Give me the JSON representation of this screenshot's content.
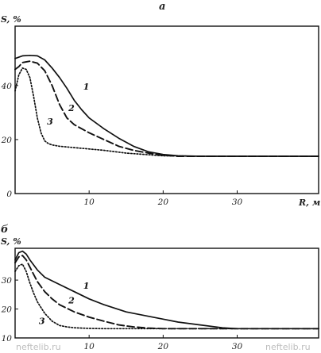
{
  "watermark": "neftelib.ru",
  "chart_data": [
    {
      "type": "line",
      "panel": "a",
      "ylabel": "S, %",
      "xlabel": "R, м",
      "xlim": [
        0,
        41
      ],
      "ylim": [
        0,
        62
      ],
      "xticks": [
        "10",
        "20",
        "30"
      ],
      "yticks": [
        {
          "v": 0,
          "label": "0"
        },
        {
          "v": 20,
          "label": "20"
        },
        {
          "v": 40,
          "label": "40"
        }
      ],
      "grid": false,
      "series": [
        {
          "name": "1",
          "style": "solid",
          "x": [
            0,
            0.5,
            1,
            2,
            3,
            4,
            5,
            6,
            7,
            8,
            9,
            10,
            12,
            14,
            16,
            18,
            20,
            22,
            25,
            30,
            35,
            41
          ],
          "y": [
            50,
            50.5,
            51,
            51.2,
            51,
            49.5,
            46.5,
            43,
            39,
            34.5,
            31,
            28,
            24,
            20.5,
            17.5,
            15.5,
            14.5,
            14,
            13.8,
            13.8,
            13.8,
            13.8
          ],
          "label_at": [
            9.2,
            38.5
          ]
        },
        {
          "name": "2",
          "style": "dashed",
          "x": [
            0,
            0.5,
            1,
            2,
            3,
            4,
            5,
            6,
            7,
            8,
            10,
            12,
            14,
            16,
            18,
            20,
            22,
            25,
            30,
            35,
            41
          ],
          "y": [
            46,
            47,
            48.5,
            49,
            48.3,
            45.5,
            40,
            33,
            28,
            25.5,
            22.5,
            20,
            17.5,
            16,
            15,
            14.2,
            13.8,
            13.8,
            13.8,
            13.8,
            13.8
          ],
          "label_at": [
            7.2,
            30.5
          ]
        },
        {
          "name": "3",
          "style": "dotted",
          "x": [
            0,
            0.5,
            1,
            1.5,
            2,
            2.5,
            3,
            3.5,
            4,
            4.5,
            5,
            6,
            8,
            10,
            12,
            15,
            20,
            25,
            30,
            35,
            41
          ],
          "y": [
            38,
            44,
            46.5,
            46,
            43,
            36,
            28,
            22.5,
            19.5,
            18.5,
            18,
            17.5,
            17,
            16.5,
            16,
            15,
            14,
            13.8,
            13.8,
            13.8,
            13.8
          ],
          "label_at": [
            4.3,
            25.5
          ]
        }
      ]
    },
    {
      "type": "line",
      "panel": "б",
      "ylabel": "S, %",
      "xlabel": "",
      "xlim": [
        0,
        41
      ],
      "ylim": [
        10,
        41
      ],
      "xticks": [
        "10",
        "20",
        "30"
      ],
      "yticks": [
        {
          "v": 10,
          "label": "10"
        },
        {
          "v": 20,
          "label": "20"
        },
        {
          "v": 30,
          "label": "30"
        }
      ],
      "grid": false,
      "series": [
        {
          "name": "1",
          "style": "solid",
          "x": [
            0,
            0.5,
            1,
            1.5,
            2,
            3,
            4,
            6,
            8,
            10,
            12,
            15,
            18,
            20,
            22,
            25,
            28,
            30,
            35,
            41
          ],
          "y": [
            37,
            39.5,
            40,
            39,
            37,
            33.5,
            31,
            28.5,
            26,
            23.5,
            21.5,
            19,
            17.5,
            16.5,
            15.5,
            14.5,
            13.5,
            13.2,
            13.2,
            13.2
          ],
          "label_at": [
            9.2,
            27
          ]
        },
        {
          "name": "2",
          "style": "dashed",
          "x": [
            0,
            0.5,
            1,
            1.5,
            2,
            3,
            4,
            5,
            6,
            8,
            10,
            12,
            14,
            16,
            18,
            20,
            25,
            30,
            35,
            41
          ],
          "y": [
            36,
            38,
            38.5,
            37,
            34.5,
            29.5,
            26,
            23.5,
            21.5,
            19,
            17.2,
            15.8,
            14.5,
            13.8,
            13.4,
            13.2,
            13.2,
            13.2,
            13.2,
            13.2
          ],
          "label_at": [
            7.2,
            22
          ]
        },
        {
          "name": "3",
          "style": "dotted",
          "x": [
            0,
            0.5,
            1,
            1.5,
            2,
            2.5,
            3,
            3.5,
            4,
            5,
            6,
            7,
            8,
            10,
            12,
            15,
            20,
            30,
            41
          ],
          "y": [
            33,
            35,
            35.5,
            33,
            29,
            25.5,
            22.5,
            20.5,
            18.5,
            15.8,
            14.3,
            13.8,
            13.5,
            13.3,
            13.2,
            13.2,
            13.2,
            13.2,
            13.2
          ],
          "label_at": [
            3.2,
            14.8
          ]
        }
      ]
    }
  ]
}
